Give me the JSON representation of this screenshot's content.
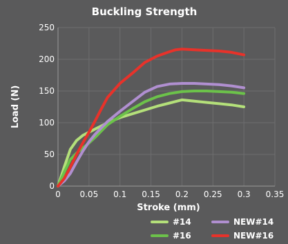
{
  "chart_data": {
    "type": "line",
    "title": "Buckling Strength",
    "xlabel": "Stroke (mm)",
    "ylabel": "Load (N)",
    "xlim": [
      0,
      0.35
    ],
    "ylim": [
      0,
      250
    ],
    "xticks": [
      "0",
      "0.05",
      "0.1",
      "0.15",
      "0.2",
      "0.25",
      "0.3",
      "0.35"
    ],
    "yticks": [
      "0",
      "50",
      "100",
      "150",
      "200",
      "250"
    ],
    "grid": true,
    "legend_position": "bottom-right",
    "series": [
      {
        "name": "#14",
        "color": "#b4e07a",
        "x": [
          0,
          0.01,
          0.02,
          0.03,
          0.04,
          0.05,
          0.06,
          0.07,
          0.08,
          0.1,
          0.12,
          0.14,
          0.16,
          0.18,
          0.2,
          0.22,
          0.24,
          0.26,
          0.28,
          0.3
        ],
        "y": [
          0,
          30,
          58,
          72,
          80,
          85,
          90,
          95,
          100,
          108,
          114,
          120,
          126,
          131,
          136,
          134,
          132,
          130,
          128,
          125
        ]
      },
      {
        "name": "#16",
        "color": "#6cc24a",
        "x": [
          0,
          0.01,
          0.02,
          0.03,
          0.04,
          0.05,
          0.06,
          0.07,
          0.08,
          0.1,
          0.12,
          0.14,
          0.16,
          0.18,
          0.2,
          0.22,
          0.24,
          0.26,
          0.28,
          0.3
        ],
        "y": [
          0,
          22,
          42,
          52,
          60,
          68,
          77,
          87,
          97,
          110,
          122,
          133,
          141,
          146,
          149,
          150,
          150,
          149,
          148,
          146
        ]
      },
      {
        "name": "NEW#14",
        "color": "#b08fd0",
        "x": [
          0,
          0.01,
          0.02,
          0.03,
          0.04,
          0.05,
          0.06,
          0.07,
          0.08,
          0.1,
          0.12,
          0.14,
          0.16,
          0.18,
          0.2,
          0.22,
          0.24,
          0.26,
          0.28,
          0.3
        ],
        "y": [
          0,
          8,
          20,
          38,
          55,
          70,
          82,
          92,
          102,
          118,
          133,
          148,
          157,
          161,
          162,
          162,
          161,
          160,
          158,
          155
        ]
      },
      {
        "name": "NEW#16",
        "color": "#e8322a",
        "x": [
          0,
          0.01,
          0.02,
          0.03,
          0.04,
          0.05,
          0.06,
          0.07,
          0.08,
          0.1,
          0.12,
          0.14,
          0.16,
          0.18,
          0.19,
          0.2,
          0.22,
          0.24,
          0.26,
          0.28,
          0.3
        ],
        "y": [
          0,
          12,
          30,
          50,
          68,
          85,
          103,
          122,
          140,
          162,
          178,
          195,
          205,
          212,
          215,
          216,
          215,
          214,
          213,
          211,
          207
        ]
      }
    ]
  }
}
